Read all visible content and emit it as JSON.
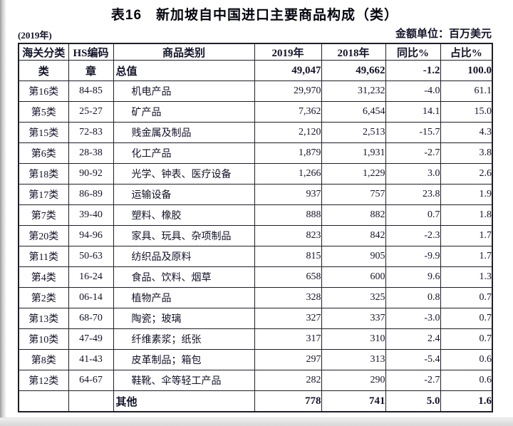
{
  "title": "表16　新加坡自中国进口主要商品构成（类）",
  "subtitle_left": "(2019年)",
  "unit_label": "金额单位：百万美元",
  "table": {
    "headers": [
      "海关分类",
      "HS编码",
      "商品类别",
      "2019年",
      "2018年",
      "同比%",
      "占比%"
    ],
    "rows": [
      {
        "cls": "类",
        "hs": "章",
        "name": "总值",
        "v2019": "49,047",
        "v2018": "49,662",
        "yoy": "-1.2",
        "share": "100.0",
        "bold": true
      },
      {
        "cls": "第16类",
        "hs": "84-85",
        "name": "机电产品",
        "v2019": "29,970",
        "v2018": "31,232",
        "yoy": "-4.0",
        "share": "61.1",
        "bold": false
      },
      {
        "cls": "第5类",
        "hs": "25-27",
        "name": "矿产品",
        "v2019": "7,362",
        "v2018": "6,454",
        "yoy": "14.1",
        "share": "15.0",
        "bold": false
      },
      {
        "cls": "第15类",
        "hs": "72-83",
        "name": "贱金属及制品",
        "v2019": "2,120",
        "v2018": "2,513",
        "yoy": "-15.7",
        "share": "4.3",
        "bold": false
      },
      {
        "cls": "第6类",
        "hs": "28-38",
        "name": "化工产品",
        "v2019": "1,879",
        "v2018": "1,931",
        "yoy": "-2.7",
        "share": "3.8",
        "bold": false
      },
      {
        "cls": "第18类",
        "hs": "90-92",
        "name": "光学、钟表、医疗设备",
        "v2019": "1,266",
        "v2018": "1,229",
        "yoy": "3.0",
        "share": "2.6",
        "bold": false
      },
      {
        "cls": "第17类",
        "hs": "86-89",
        "name": "运输设备",
        "v2019": "937",
        "v2018": "757",
        "yoy": "23.8",
        "share": "1.9",
        "bold": false
      },
      {
        "cls": "第7类",
        "hs": "39-40",
        "name": "塑料、橡胶",
        "v2019": "888",
        "v2018": "882",
        "yoy": "0.7",
        "share": "1.8",
        "bold": false
      },
      {
        "cls": "第20类",
        "hs": "94-96",
        "name": "家具、玩具、杂项制品",
        "v2019": "823",
        "v2018": "842",
        "yoy": "-2.3",
        "share": "1.7",
        "bold": false
      },
      {
        "cls": "第11类",
        "hs": "50-63",
        "name": "纺织品及原料",
        "v2019": "815",
        "v2018": "905",
        "yoy": "-9.9",
        "share": "1.7",
        "bold": false
      },
      {
        "cls": "第4类",
        "hs": "16-24",
        "name": "食品、饮料、烟草",
        "v2019": "658",
        "v2018": "600",
        "yoy": "9.6",
        "share": "1.3",
        "bold": false
      },
      {
        "cls": "第2类",
        "hs": "06-14",
        "name": "植物产品",
        "v2019": "328",
        "v2018": "325",
        "yoy": "0.8",
        "share": "0.7",
        "bold": false
      },
      {
        "cls": "第13类",
        "hs": "68-70",
        "name": "陶瓷；玻璃",
        "v2019": "327",
        "v2018": "337",
        "yoy": "-3.0",
        "share": "0.7",
        "bold": false
      },
      {
        "cls": "第10类",
        "hs": "47-49",
        "name": "纤维素浆；纸张",
        "v2019": "317",
        "v2018": "310",
        "yoy": "2.4",
        "share": "0.7",
        "bold": false
      },
      {
        "cls": "第8类",
        "hs": "41-43",
        "name": "皮革制品；箱包",
        "v2019": "297",
        "v2018": "313",
        "yoy": "-5.4",
        "share": "0.6",
        "bold": false
      },
      {
        "cls": "第12类",
        "hs": "64-67",
        "name": "鞋靴、伞等轻工产品",
        "v2019": "282",
        "v2018": "290",
        "yoy": "-2.7",
        "share": "0.6",
        "bold": false
      },
      {
        "cls": "",
        "hs": "",
        "name": "其他",
        "v2019": "778",
        "v2018": "741",
        "yoy": "5.0",
        "share": "1.6",
        "bold": true
      }
    ]
  }
}
